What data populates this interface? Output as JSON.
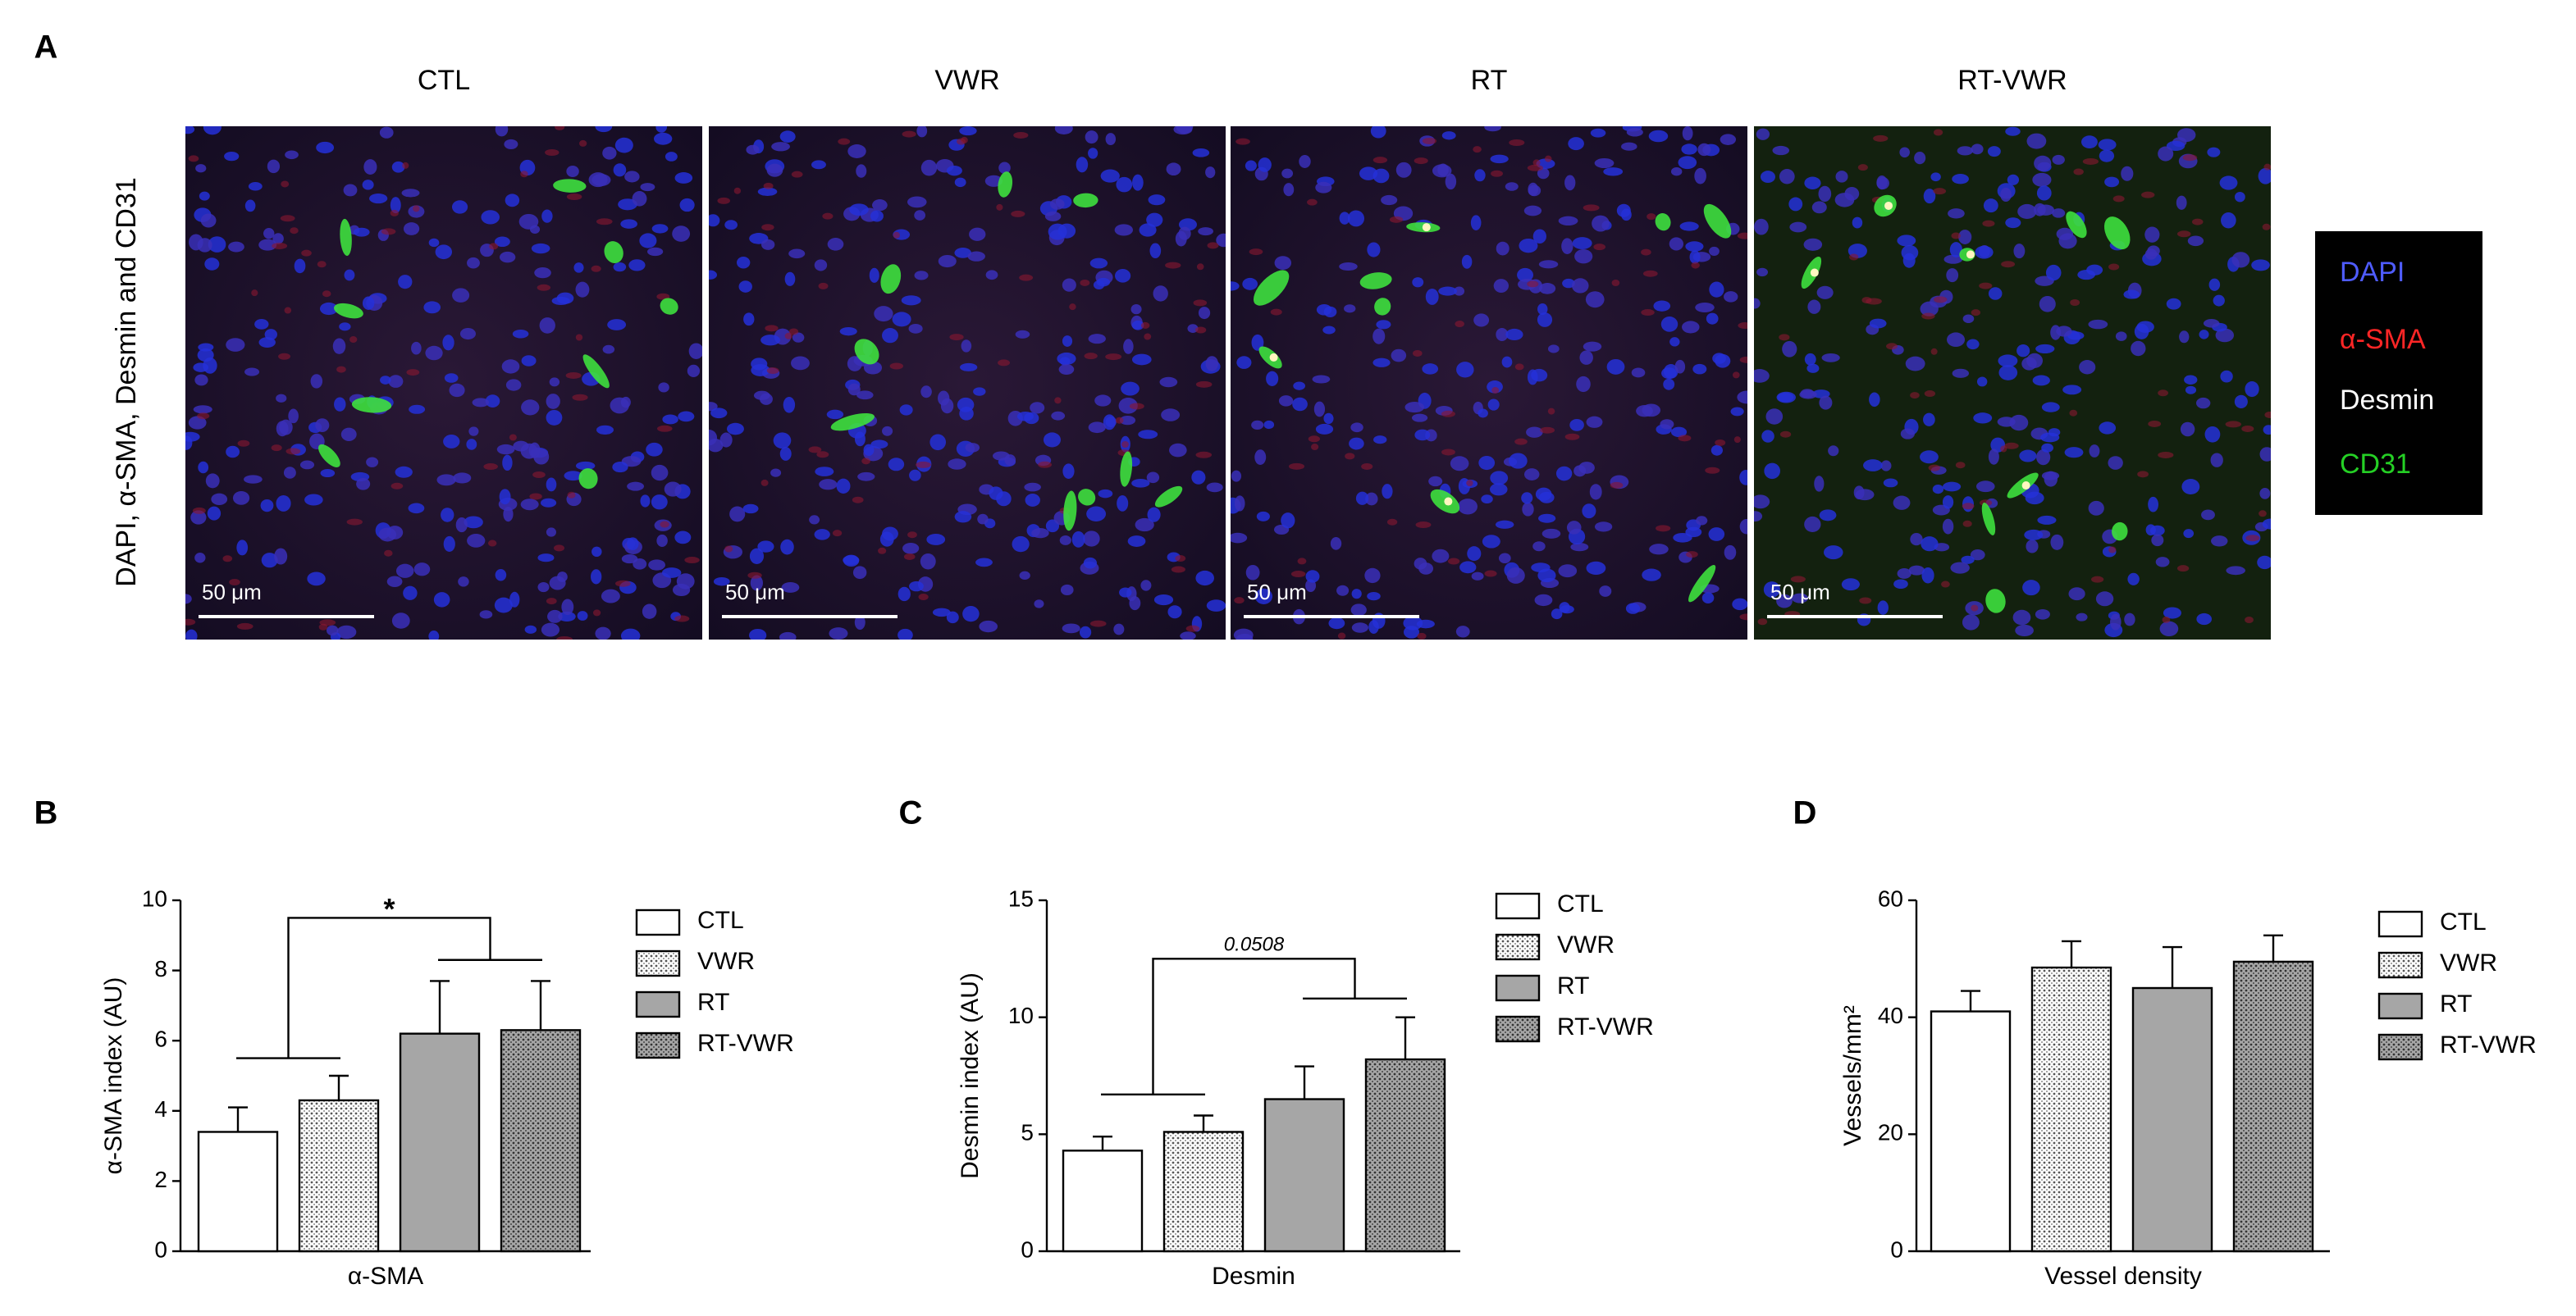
{
  "panel_a": {
    "letter": "A",
    "columns": [
      "CTL",
      "VWR",
      "RT",
      "RT-VWR"
    ],
    "side_label": "DAPI, α-SMA, Desmin and CD31",
    "scale_bar": "50 μm",
    "legend": [
      {
        "name": "DAPI",
        "color": "#4f5cff"
      },
      {
        "name": "α-SMA",
        "color": "#ff2626"
      },
      {
        "name": "Desmin",
        "color": "#ffffff"
      },
      {
        "name": "CD31",
        "color": "#25d025"
      }
    ]
  },
  "chart_data": [
    {
      "type": "bar",
      "panel": "B",
      "ylabel": "α-SMA index (AU)",
      "xlabel": "α-SMA",
      "categories": [
        "CTL",
        "VWR",
        "RT",
        "RT-VWR"
      ],
      "values": [
        3.4,
        4.3,
        6.2,
        6.3
      ],
      "errors": [
        0.7,
        0.7,
        1.5,
        1.4
      ],
      "colors": [
        "#ffffff",
        "#ffffff",
        "#a6a6a6",
        "#a6a6a6"
      ],
      "hatch": [
        false,
        true,
        false,
        true
      ],
      "ylim": [
        0,
        10
      ],
      "yticks": [
        0,
        2,
        4,
        6,
        8,
        10
      ],
      "annotation": "*"
    },
    {
      "type": "bar",
      "panel": "C",
      "ylabel": "Desmin index (AU)",
      "xlabel": "Desmin",
      "categories": [
        "CTL",
        "VWR",
        "RT",
        "RT-VWR"
      ],
      "values": [
        4.3,
        5.1,
        6.5,
        8.2
      ],
      "errors": [
        0.6,
        0.7,
        1.4,
        1.8
      ],
      "colors": [
        "#ffffff",
        "#ffffff",
        "#a6a6a6",
        "#a6a6a6"
      ],
      "hatch": [
        false,
        true,
        false,
        true
      ],
      "ylim": [
        0,
        15
      ],
      "yticks": [
        0,
        5,
        10,
        15
      ],
      "annotation": "0.0508"
    },
    {
      "type": "bar",
      "panel": "D",
      "ylabel": "Vessels/mm²",
      "xlabel": "Vessel density",
      "categories": [
        "CTL",
        "VWR",
        "RT",
        "RT-VWR"
      ],
      "values": [
        41,
        48.5,
        45,
        49.5
      ],
      "errors": [
        3.5,
        4.5,
        7,
        4.5
      ],
      "colors": [
        "#ffffff",
        "#ffffff",
        "#a6a6a6",
        "#a6a6a6"
      ],
      "hatch": [
        false,
        true,
        false,
        true
      ],
      "ylim": [
        0,
        60
      ],
      "yticks": [
        0,
        20,
        40,
        60
      ]
    }
  ]
}
